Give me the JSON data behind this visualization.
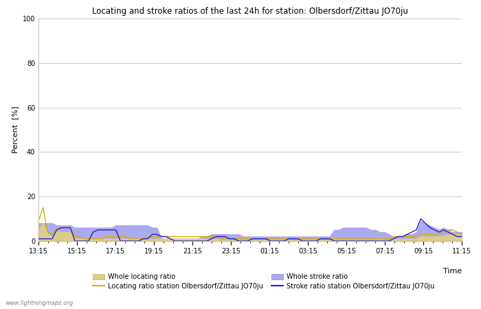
{
  "title": "Locating and stroke ratios of the last 24h for station: Olbersdorf/Zittau JO70ju",
  "ylabel": "Percent  [%]",
  "xlabel": "Time",
  "watermark": "www.lightningmaps.org",
  "ylim": [
    0,
    100
  ],
  "yticks": [
    0,
    20,
    40,
    60,
    80,
    100
  ],
  "x_labels": [
    "13:15",
    "15:15",
    "17:15",
    "19:15",
    "21:15",
    "23:15",
    "01:15",
    "03:15",
    "05:15",
    "07:15",
    "09:15",
    "11:15"
  ],
  "locating_line_color": "#ddaa00",
  "locating_fill_color": "#ddcc88",
  "stroke_line_color": "#2222cc",
  "stroke_fill_color": "#aaaaee",
  "background_color": "#ffffff",
  "grid_color": "#cccccc",
  "locating_line": [
    9,
    15,
    4,
    3,
    6,
    6,
    6,
    6,
    2,
    2,
    1,
    1,
    1,
    1,
    1,
    2,
    2,
    2,
    2,
    2,
    1,
    1,
    1,
    1,
    2,
    2,
    2,
    2,
    2,
    2,
    2,
    2,
    2,
    2,
    2,
    2,
    2,
    2,
    2,
    2,
    1,
    1,
    1,
    1,
    1,
    1,
    1,
    1,
    1,
    1,
    1,
    1,
    1,
    1,
    1,
    1,
    1,
    1,
    1,
    1,
    1,
    1,
    1,
    1,
    1,
    1,
    1,
    1,
    1,
    1,
    1,
    1,
    1,
    1,
    1,
    1,
    1,
    1,
    2,
    2,
    2,
    2,
    2,
    2,
    3,
    3,
    3,
    3,
    3,
    4,
    5,
    5,
    4,
    3
  ],
  "locating_fill": [
    5,
    8,
    3,
    2,
    4,
    4,
    4,
    4,
    1,
    1,
    1,
    1,
    1,
    1,
    1,
    1,
    1,
    1,
    1,
    1,
    1,
    1,
    1,
    1,
    1,
    1,
    1,
    1,
    1,
    1,
    1,
    1,
    1,
    1,
    1,
    1,
    1,
    1,
    1,
    1,
    0.5,
    0.5,
    0.5,
    0.5,
    0.5,
    0.5,
    0.5,
    0.5,
    0.5,
    0.5,
    0.5,
    0.5,
    0.5,
    0.5,
    0.5,
    0.5,
    0.5,
    0.5,
    0.5,
    0.5,
    0.5,
    0.5,
    0.5,
    0.5,
    0.5,
    0.5,
    0.5,
    0.5,
    0.5,
    0.5,
    0.5,
    0.5,
    0.5,
    0.5,
    0.5,
    0.5,
    0.5,
    0.5,
    1,
    1,
    1,
    1,
    1,
    1,
    2,
    2,
    2,
    2,
    2,
    2.5,
    3,
    3,
    3,
    2.5
  ],
  "stroke_line": [
    1,
    1,
    1,
    1,
    5,
    6,
    6,
    6,
    0,
    0,
    0,
    0,
    4,
    5,
    5,
    5,
    5,
    5,
    0,
    0,
    0,
    0,
    0,
    1,
    1,
    3,
    3,
    2,
    2,
    1,
    0,
    0,
    0,
    0,
    0,
    0,
    0,
    0,
    1,
    2,
    2,
    2,
    1,
    1,
    0,
    0,
    0,
    1,
    1,
    1,
    1,
    0,
    0,
    0,
    0,
    1,
    1,
    1,
    0,
    0,
    0,
    0,
    1,
    1,
    1,
    0,
    0,
    0,
    0,
    0,
    0,
    0,
    0,
    0,
    0,
    0,
    0,
    0,
    1,
    2,
    2,
    3,
    4,
    5,
    10,
    8,
    6,
    5,
    4,
    5,
    4,
    3,
    2,
    2
  ],
  "stroke_fill": [
    8,
    8,
    8,
    8,
    7,
    7,
    7,
    7,
    6,
    6,
    6,
    6,
    6,
    6,
    6,
    6,
    6,
    7,
    7,
    7,
    7,
    7,
    7,
    7,
    7,
    6,
    6,
    1,
    1,
    1,
    1,
    1,
    1,
    1,
    1,
    1,
    2,
    2,
    3,
    3,
    3,
    3,
    3,
    3,
    3,
    2,
    2,
    2,
    2,
    2,
    2,
    2,
    2,
    2,
    2,
    2,
    2,
    2,
    2,
    2,
    2,
    2,
    2,
    2,
    2,
    5,
    5,
    6,
    6,
    6,
    6,
    6,
    6,
    5,
    5,
    4,
    4,
    3,
    2,
    2,
    2,
    3,
    3,
    4,
    9,
    8,
    7,
    6,
    5,
    6,
    5,
    4,
    4,
    4
  ],
  "legend_row1": [
    "Whole locating ratio",
    "Locating ratio station Olbersdorf/Zittau JO70ju"
  ],
  "legend_row2": [
    "Whole stroke ratio",
    "Stroke ratio station Olbersdorf/Zittau JO70ju"
  ]
}
